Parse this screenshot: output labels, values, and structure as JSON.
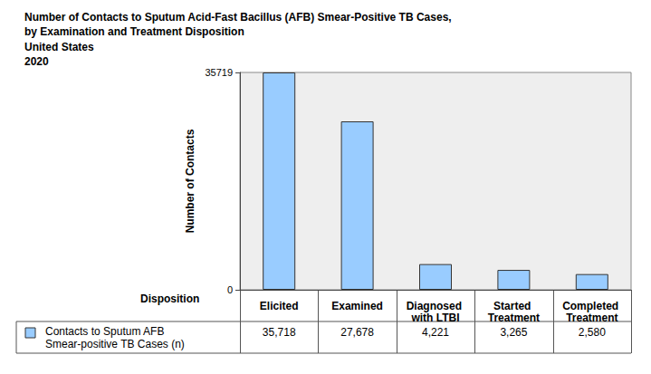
{
  "chart_data": {
    "type": "bar",
    "title": "Number of Contacts to Sputum Acid-Fast Bacillus (AFB) Smear-Positive TB Cases,\nby Examination and Treatment Disposition",
    "subtitle": "United States\n2020",
    "x_label": "Disposition",
    "y_label": "Number of Contacts",
    "categories": [
      "Elicited",
      "Examined",
      "Diagnosed with LTBI",
      "Started Treatment",
      "Completed Treatment"
    ],
    "series": [
      {
        "name": "Contacts to Sputum AFB Smear-positive TB Cases (n)",
        "color": "#99ccff",
        "values": [
          35718,
          27678,
          4221,
          3265,
          2580
        ],
        "value_labels": [
          "35,718",
          "27,678",
          "4,221",
          "3,265",
          "2,580"
        ]
      }
    ],
    "ylim": [
      0,
      35719
    ],
    "yticks": [
      0,
      35719
    ],
    "grid": false,
    "data_labels": false
  }
}
